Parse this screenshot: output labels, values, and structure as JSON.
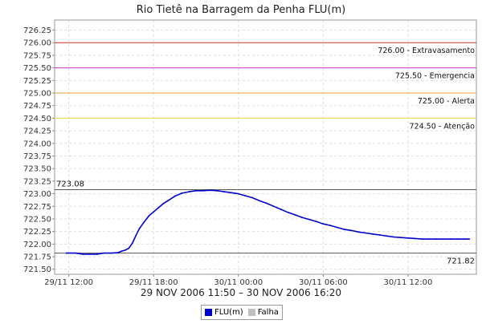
{
  "chart_data": {
    "type": "line",
    "title": "Rio Tietê na Barragem da Penha FLU(m)",
    "subtitle": "29 NOV 2006 11:50 – 30 NOV 2006 16:20",
    "ylim": [
      721.4,
      726.45
    ],
    "yticks": [
      "721.50",
      "721.75",
      "722.00",
      "722.25",
      "722.50",
      "722.75",
      "723.00",
      "723.25",
      "723.50",
      "723.75",
      "724.00",
      "724.25",
      "724.50",
      "724.75",
      "725.00",
      "725.25",
      "725.50",
      "725.75",
      "726.00",
      "726.25"
    ],
    "x_start": "29/11 11:00",
    "x_end": "30/11 16:50",
    "xticks": [
      {
        "t": "29/11 12:00",
        "label": "29/11 12:00"
      },
      {
        "t": "29/11 18:00",
        "label": "29/11 18:00"
      },
      {
        "t": "30/11 00:00",
        "label": "30/11 00:00"
      },
      {
        "t": "30/11 06:00",
        "label": "30/11 06:00"
      },
      {
        "t": "30/11 12:00",
        "label": "30/11 12:00"
      }
    ],
    "thresholds": [
      {
        "value": 726.0,
        "label": "726.00 - Extravasamento",
        "color": "#cc3333"
      },
      {
        "value": 725.5,
        "label": "725.50 - Emergencia",
        "color": "#cc33cc"
      },
      {
        "value": 725.0,
        "label": "725.00 - Alerta",
        "color": "#e8a03a"
      },
      {
        "value": 724.5,
        "label": "724.50 - Atenção",
        "color": "#f0dc40"
      }
    ],
    "max_line": {
      "value": 723.08,
      "label": "723.08",
      "color": "#555555"
    },
    "min_line": {
      "value": 721.82,
      "label": "721.82",
      "color": "#555555"
    },
    "series": [
      {
        "name": "FLU(m)",
        "color": "#0000cc",
        "points": [
          [
            "29/11 11:50",
            721.82
          ],
          [
            "29/11 12:30",
            721.82
          ],
          [
            "29/11 13:00",
            721.8
          ],
          [
            "29/11 13:30",
            721.8
          ],
          [
            "29/11 14:00",
            721.8
          ],
          [
            "29/11 14:30",
            721.82
          ],
          [
            "29/11 15:00",
            721.82
          ],
          [
            "29/11 15:30",
            721.83
          ],
          [
            "29/11 15:45",
            721.86
          ],
          [
            "29/11 16:00",
            721.88
          ],
          [
            "29/11 16:15",
            721.92
          ],
          [
            "29/11 16:30",
            722.02
          ],
          [
            "29/11 16:45",
            722.17
          ],
          [
            "29/11 17:00",
            722.31
          ],
          [
            "29/11 17:20",
            722.44
          ],
          [
            "29/11 17:40",
            722.56
          ],
          [
            "29/11 18:00",
            722.64
          ],
          [
            "29/11 18:20",
            722.72
          ],
          [
            "29/11 18:40",
            722.8
          ],
          [
            "29/11 19:00",
            722.86
          ],
          [
            "29/11 19:30",
            722.95
          ],
          [
            "29/11 20:00",
            723.01
          ],
          [
            "29/11 20:30",
            723.04
          ],
          [
            "29/11 21:00",
            723.06
          ],
          [
            "29/11 21:30",
            723.06
          ],
          [
            "29/11 22:00",
            723.07
          ],
          [
            "29/11 22:30",
            723.06
          ],
          [
            "29/11 23:00",
            723.04
          ],
          [
            "29/11 23:30",
            723.02
          ],
          [
            "30/11 00:00",
            723.0
          ],
          [
            "30/11 00:30",
            722.96
          ],
          [
            "30/11 01:00",
            722.92
          ],
          [
            "30/11 01:30",
            722.86
          ],
          [
            "30/11 02:00",
            722.81
          ],
          [
            "30/11 02:30",
            722.75
          ],
          [
            "30/11 03:00",
            722.69
          ],
          [
            "30/11 03:30",
            722.63
          ],
          [
            "30/11 04:00",
            722.58
          ],
          [
            "30/11 04:30",
            722.53
          ],
          [
            "30/11 05:00",
            722.49
          ],
          [
            "30/11 05:30",
            722.45
          ],
          [
            "30/11 06:00",
            722.4
          ],
          [
            "30/11 06:30",
            722.37
          ],
          [
            "30/11 07:00",
            722.33
          ],
          [
            "30/11 07:30",
            722.29
          ],
          [
            "30/11 08:00",
            722.27
          ],
          [
            "30/11 08:30",
            722.24
          ],
          [
            "30/11 09:00",
            722.22
          ],
          [
            "30/11 09:30",
            722.2
          ],
          [
            "30/11 10:00",
            722.18
          ],
          [
            "30/11 10:30",
            722.16
          ],
          [
            "30/11 11:00",
            722.14
          ],
          [
            "30/11 11:30",
            722.13
          ],
          [
            "30/11 12:00",
            722.12
          ],
          [
            "30/11 12:30",
            722.11
          ],
          [
            "30/11 13:00",
            722.1
          ],
          [
            "30/11 13:30",
            722.1
          ],
          [
            "30/11 14:00",
            722.1
          ],
          [
            "30/11 14:30",
            722.1
          ],
          [
            "30/11 15:00",
            722.1
          ],
          [
            "30/11 15:30",
            722.1
          ],
          [
            "30/11 16:00",
            722.1
          ],
          [
            "30/11 16:20",
            722.1
          ]
        ]
      }
    ],
    "legend": [
      {
        "label": "FLU(m)",
        "color": "#0000cc"
      },
      {
        "label": "Falha",
        "color": "#c0c0c0"
      }
    ],
    "legend_position": "bottom-center",
    "grid": true
  }
}
